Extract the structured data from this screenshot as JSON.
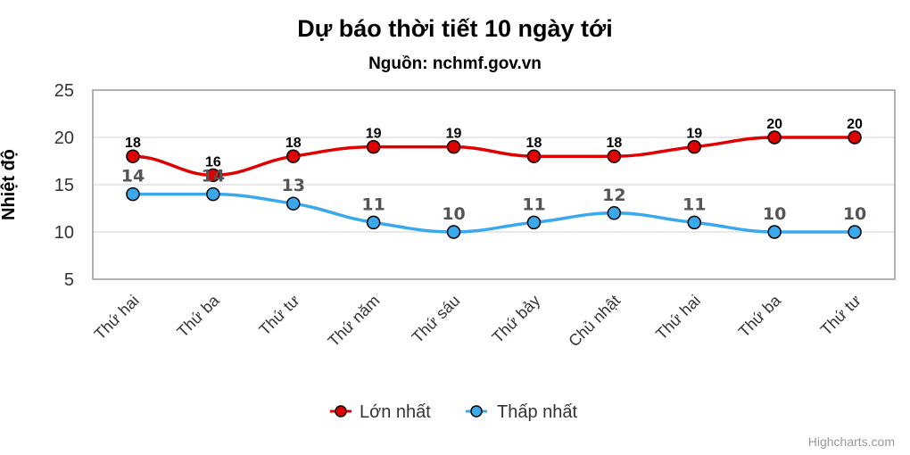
{
  "chart": {
    "title": "Dự báo thời tiết 10 ngày tới",
    "subtitle": "Nguồn: nchmf.gov.vn",
    "credits": "Highcharts.com",
    "colors": {
      "max": "#e00000",
      "min": "#3aa9ec",
      "grid": "#e0e0e0",
      "border": "#999999"
    }
  },
  "chart_data": {
    "type": "line",
    "title": "Dự báo thời tiết 10 ngày tới",
    "subtitle": "Nguồn: nchmf.gov.vn",
    "xlabel": "",
    "ylabel": "Nhiệt độ",
    "ylim": [
      5,
      25
    ],
    "yticks": [
      5,
      10,
      15,
      20,
      25
    ],
    "grid": true,
    "legend_position": "bottom",
    "categories": [
      "Thứ hai",
      "Thứ ba",
      "Thứ tư",
      "Thứ năm",
      "Thứ sáu",
      "Thứ bảy",
      "Chủ nhật",
      "Thứ hai",
      "Thứ ba",
      "Thứ tư"
    ],
    "series": [
      {
        "name": "Lớn nhất",
        "color": "#e00000",
        "values": [
          18,
          16,
          18,
          19,
          19,
          18,
          18,
          19,
          20,
          20
        ]
      },
      {
        "name": "Thấp nhất",
        "color": "#3aa9ec",
        "values": [
          14,
          14,
          13,
          11,
          10,
          11,
          12,
          11,
          10,
          10
        ]
      }
    ]
  }
}
